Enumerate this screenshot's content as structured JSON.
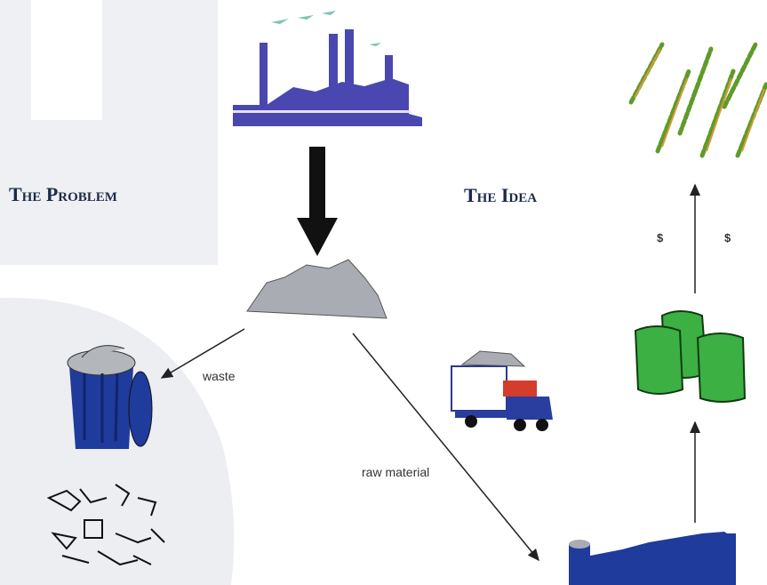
{
  "headings": {
    "problem": "The Problem",
    "idea": "The Idea"
  },
  "edges": [
    {
      "label": "waste"
    },
    {
      "label": "raw material"
    }
  ],
  "annotations": [
    "$",
    "$"
  ]
}
